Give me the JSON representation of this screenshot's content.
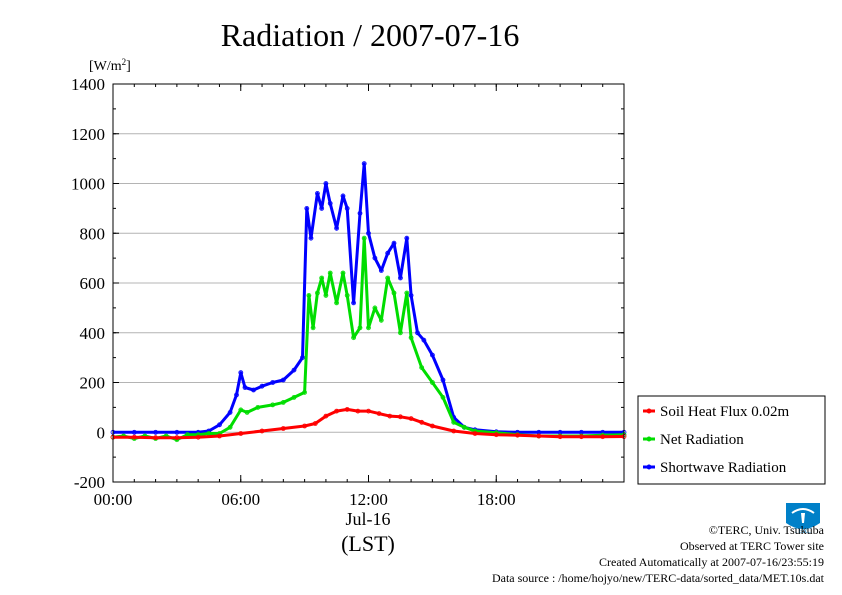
{
  "chart_data": {
    "type": "line",
    "title": "Radiation / 2007-07-16",
    "ylabel": "[W/m²]",
    "ylabel_main": "[W/m",
    "ylabel_sup": "2",
    "ylabel_close": "]",
    "xlabel_date": "Jul-16",
    "xlabel_tz": "(LST)",
    "ylim": [
      -200,
      1400
    ],
    "xlim": [
      0,
      24
    ],
    "yticks": [
      "-200",
      "0",
      "200",
      "400",
      "600",
      "800",
      "1000",
      "1200",
      "1400"
    ],
    "xticks": [
      "00:00",
      "06:00",
      "12:00",
      "18:00"
    ],
    "grid": true,
    "legend_position": "bottom-right, outside plot",
    "series": [
      {
        "name": "Soil Heat Flux 0.02m",
        "color": "#ff0000",
        "points": [
          [
            0,
            -20
          ],
          [
            1,
            -20
          ],
          [
            2,
            -22
          ],
          [
            3,
            -22
          ],
          [
            4,
            -20
          ],
          [
            5,
            -15
          ],
          [
            6,
            -5
          ],
          [
            7,
            5
          ],
          [
            8,
            15
          ],
          [
            9,
            25
          ],
          [
            9.5,
            35
          ],
          [
            10,
            65
          ],
          [
            10.5,
            85
          ],
          [
            11,
            92
          ],
          [
            11.5,
            85
          ],
          [
            12,
            85
          ],
          [
            12.5,
            75
          ],
          [
            13,
            65
          ],
          [
            13.5,
            62
          ],
          [
            14,
            55
          ],
          [
            14.5,
            40
          ],
          [
            15,
            25
          ],
          [
            16,
            5
          ],
          [
            17,
            -5
          ],
          [
            18,
            -10
          ],
          [
            19,
            -12
          ],
          [
            20,
            -15
          ],
          [
            21,
            -18
          ],
          [
            22,
            -18
          ],
          [
            23,
            -18
          ],
          [
            24,
            -17
          ]
        ]
      },
      {
        "name": "Net Radiation",
        "color": "#00dd00",
        "points": [
          [
            0,
            -20
          ],
          [
            0.5,
            -15
          ],
          [
            1,
            -25
          ],
          [
            1.5,
            -15
          ],
          [
            2,
            -25
          ],
          [
            2.5,
            -15
          ],
          [
            3,
            -30
          ],
          [
            3.5,
            -10
          ],
          [
            4,
            -10
          ],
          [
            4.5,
            -5
          ],
          [
            5,
            -5
          ],
          [
            5.5,
            20
          ],
          [
            6,
            90
          ],
          [
            6.3,
            80
          ],
          [
            6.8,
            100
          ],
          [
            7.5,
            110
          ],
          [
            8,
            120
          ],
          [
            8.5,
            140
          ],
          [
            9,
            160
          ],
          [
            9.2,
            550
          ],
          [
            9.4,
            420
          ],
          [
            9.6,
            560
          ],
          [
            9.8,
            620
          ],
          [
            10,
            550
          ],
          [
            10.2,
            640
          ],
          [
            10.5,
            520
          ],
          [
            10.8,
            640
          ],
          [
            11,
            550
          ],
          [
            11.3,
            380
          ],
          [
            11.6,
            420
          ],
          [
            11.8,
            780
          ],
          [
            12,
            420
          ],
          [
            12.3,
            500
          ],
          [
            12.6,
            450
          ],
          [
            12.9,
            620
          ],
          [
            13.2,
            560
          ],
          [
            13.5,
            400
          ],
          [
            13.8,
            560
          ],
          [
            14,
            380
          ],
          [
            14.5,
            260
          ],
          [
            15,
            200
          ],
          [
            15.5,
            140
          ],
          [
            16,
            40
          ],
          [
            16.5,
            20
          ],
          [
            17,
            5
          ],
          [
            18,
            -2
          ],
          [
            19,
            -10
          ],
          [
            20,
            -15
          ],
          [
            21,
            -15
          ],
          [
            22,
            -15
          ],
          [
            23,
            -12
          ],
          [
            24,
            -10
          ]
        ]
      },
      {
        "name": "Shortwave Radiation",
        "color": "#0000ff",
        "points": [
          [
            0,
            0
          ],
          [
            1,
            0
          ],
          [
            2,
            0
          ],
          [
            3,
            0
          ],
          [
            4,
            0
          ],
          [
            4.5,
            5
          ],
          [
            5,
            30
          ],
          [
            5.5,
            80
          ],
          [
            5.8,
            150
          ],
          [
            6,
            240
          ],
          [
            6.2,
            180
          ],
          [
            6.6,
            170
          ],
          [
            7,
            185
          ],
          [
            7.5,
            200
          ],
          [
            8,
            210
          ],
          [
            8.5,
            250
          ],
          [
            8.9,
            300
          ],
          [
            9.1,
            900
          ],
          [
            9.3,
            780
          ],
          [
            9.6,
            960
          ],
          [
            9.8,
            900
          ],
          [
            10,
            1000
          ],
          [
            10.2,
            920
          ],
          [
            10.5,
            820
          ],
          [
            10.8,
            950
          ],
          [
            11,
            900
          ],
          [
            11.3,
            520
          ],
          [
            11.6,
            880
          ],
          [
            11.8,
            1080
          ],
          [
            12,
            800
          ],
          [
            12.3,
            700
          ],
          [
            12.6,
            650
          ],
          [
            12.9,
            720
          ],
          [
            13.2,
            760
          ],
          [
            13.5,
            620
          ],
          [
            13.8,
            780
          ],
          [
            14,
            550
          ],
          [
            14.3,
            400
          ],
          [
            14.6,
            370
          ],
          [
            15,
            310
          ],
          [
            15.5,
            210
          ],
          [
            16,
            60
          ],
          [
            16.5,
            20
          ],
          [
            17,
            10
          ],
          [
            18,
            2
          ],
          [
            19,
            0
          ],
          [
            20,
            0
          ],
          [
            21,
            0
          ],
          [
            22,
            0
          ],
          [
            23,
            0
          ],
          [
            24,
            0
          ]
        ]
      }
    ]
  },
  "footer": {
    "copyright": "©TERC, Univ. Tsukuba",
    "observed": "Observed at TERC Tower site",
    "created": "Created Automatically at 2007-07-16/23:55:19",
    "source": "Data source : /home/hojyo/new/TERC-data/sorted_data/MET.10s.dat"
  },
  "logo": {
    "text": "TERC",
    "color": "#0080c8"
  }
}
